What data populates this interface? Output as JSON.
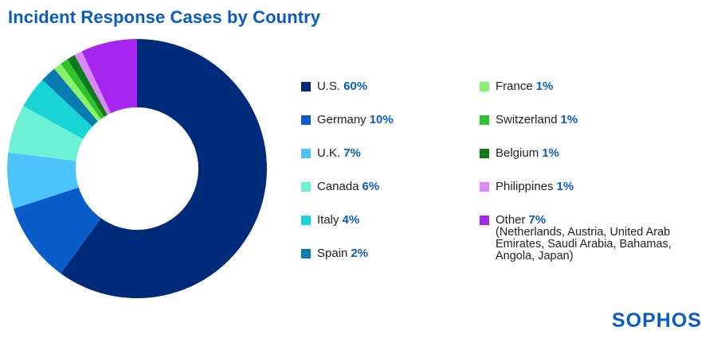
{
  "title": "Incident Response Cases by Country",
  "logo_text": "SOPHOS",
  "chart_data": {
    "type": "pie",
    "title": "Incident Response Cases by Country",
    "donut": true,
    "unit": "%",
    "slices": [
      {
        "label": "U.S.",
        "value": 60,
        "pct_label": "60%",
        "color": "#002b7a"
      },
      {
        "label": "Germany",
        "value": 10,
        "pct_label": "10%",
        "color": "#0a5cc9"
      },
      {
        "label": "U.K.",
        "value": 7,
        "pct_label": "7%",
        "color": "#4cc4fb"
      },
      {
        "label": "Canada",
        "value": 6,
        "pct_label": "6%",
        "color": "#6df1d5"
      },
      {
        "label": "Italy",
        "value": 4,
        "pct_label": "4%",
        "color": "#19d4d4"
      },
      {
        "label": "Spain",
        "value": 2,
        "pct_label": "2%",
        "color": "#0a7bb0"
      },
      {
        "label": "France",
        "value": 1,
        "pct_label": "1%",
        "color": "#8af26a"
      },
      {
        "label": "Switzerland",
        "value": 1,
        "pct_label": "1%",
        "color": "#30c12c"
      },
      {
        "label": "Belgium",
        "value": 1,
        "pct_label": "1%",
        "color": "#0d7a1c"
      },
      {
        "label": "Philippines",
        "value": 1,
        "pct_label": "1%",
        "color": "#d98af6"
      },
      {
        "label": "Other",
        "value": 7,
        "pct_label": "7%",
        "color": "#a526ee",
        "note": "(Netherlands, Austria, United Arab Emirates, Saudi Arabia, Bahamas, Angola, Japan)"
      }
    ],
    "legend": "right"
  }
}
